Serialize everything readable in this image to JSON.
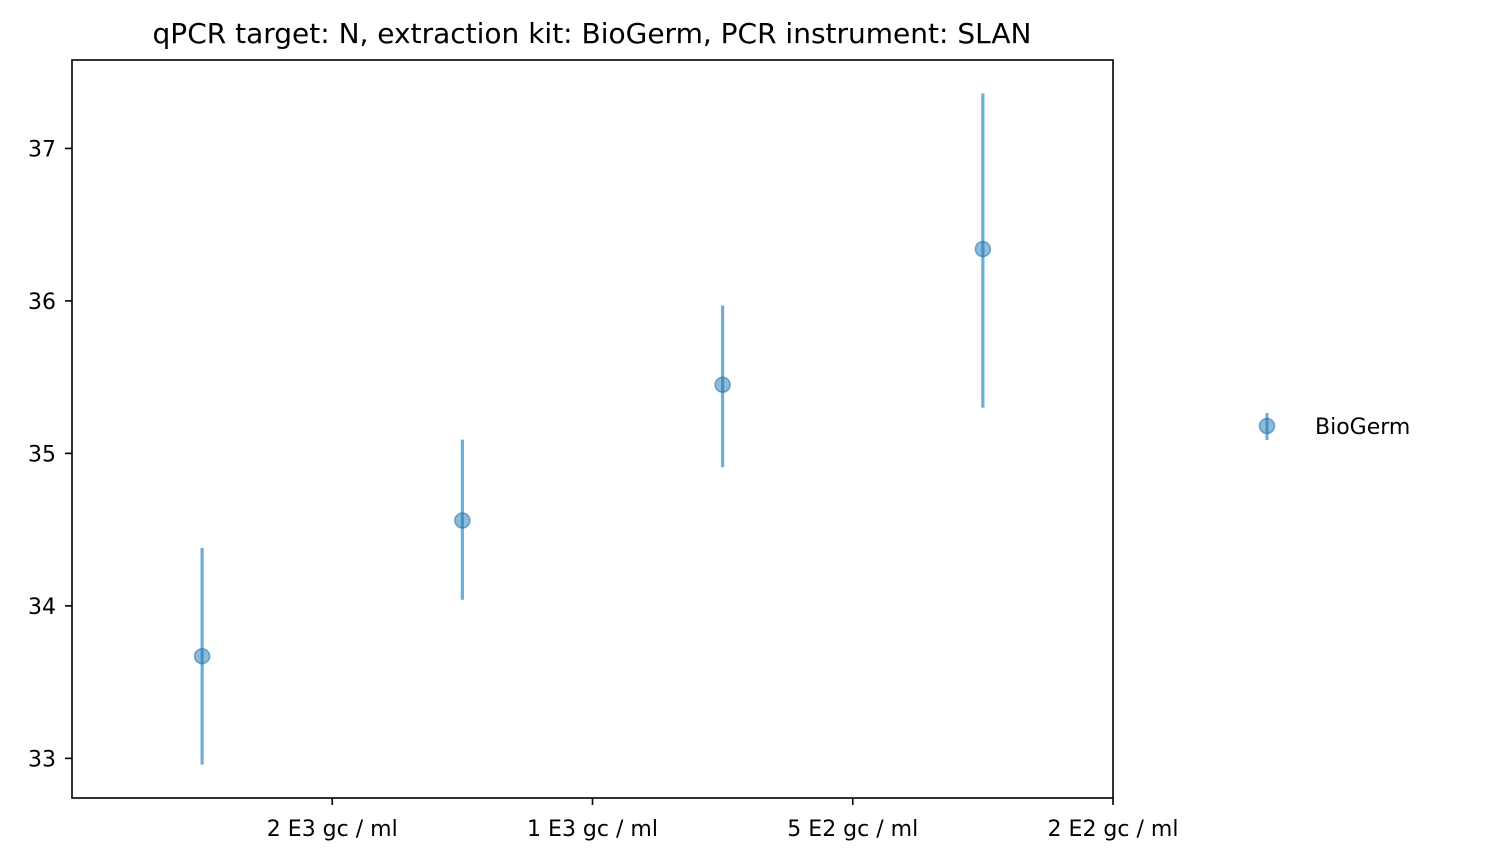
{
  "chart_data": {
    "type": "scatter",
    "title": "qPCR target: N, extraction kit: BioGerm, PCR instrument: SLAN",
    "xlabel": "",
    "ylabel": "",
    "categories": [
      "2 E3 gc / ml",
      "1 E3 gc / ml",
      "5 E2 gc / ml",
      "2 E2 gc / ml"
    ],
    "yticks": [
      33,
      34,
      35,
      36,
      37
    ],
    "ylim": [
      32.74,
      37.58
    ],
    "grid": false,
    "legend_position": "right-center",
    "series": [
      {
        "name": "BioGerm",
        "color": "#1f77b4",
        "error_color": "#6baed6",
        "x": [
          0.5,
          1.5,
          2.5,
          3.5
        ],
        "y": [
          33.67,
          34.56,
          35.45,
          36.34
        ],
        "y_low": [
          32.96,
          34.04,
          34.91,
          35.3
        ],
        "y_high": [
          34.38,
          35.09,
          35.97,
          37.36
        ]
      }
    ]
  }
}
